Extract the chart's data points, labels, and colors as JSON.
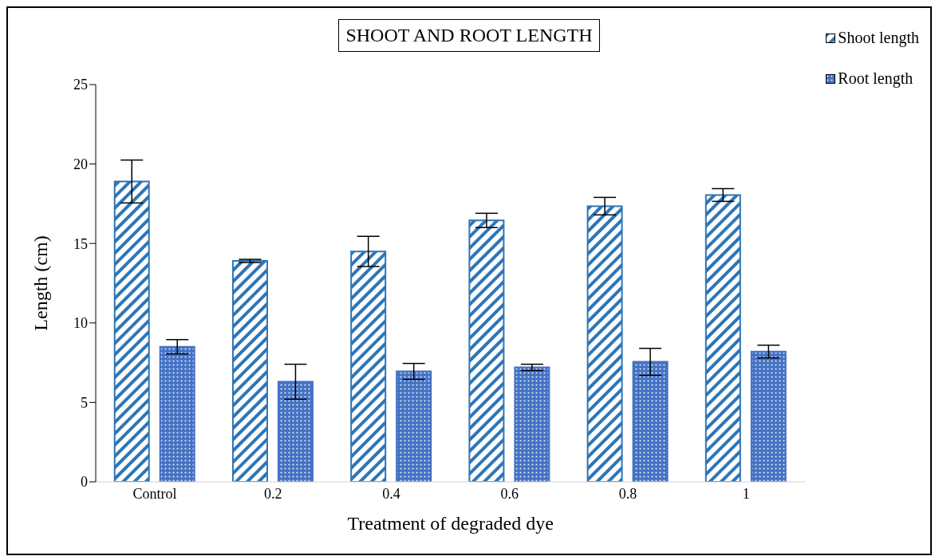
{
  "chart_data": {
    "type": "bar",
    "title": "SHOOT AND ROOT LENGTH",
    "xlabel": "Treatment of degraded dye",
    "ylabel": "Length (cm)",
    "categories": [
      "Control",
      "0.2",
      "0.4",
      "0.6",
      "0.8",
      "1"
    ],
    "series": [
      {
        "name": "Shoot length",
        "color": "#2e75b6",
        "values": [
          18.9,
          13.9,
          14.5,
          16.45,
          17.35,
          18.05
        ],
        "errors": [
          1.35,
          0.1,
          0.95,
          0.45,
          0.55,
          0.4
        ]
      },
      {
        "name": "Root length",
        "color": "#4472c4",
        "values": [
          8.5,
          6.3,
          6.95,
          7.2,
          7.55,
          8.2
        ],
        "errors": [
          0.45,
          1.1,
          0.5,
          0.2,
          0.85,
          0.4
        ]
      }
    ],
    "ylim": [
      0,
      25
    ],
    "yticks": [
      0,
      5,
      10,
      15,
      20,
      25
    ],
    "grid": false,
    "legend": "top right"
  }
}
